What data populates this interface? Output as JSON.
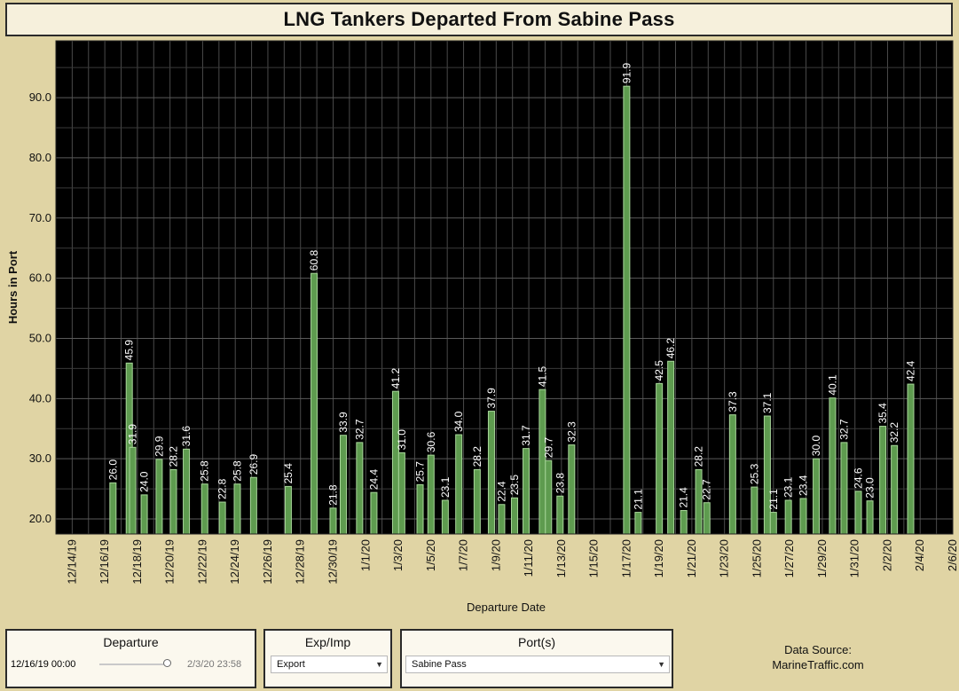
{
  "title": "LNG Tankers Departed From Sabine Pass",
  "filters": {
    "departure": {
      "title": "Departure",
      "start": "12/16/19 00:00",
      "end": "2/3/20 23:58"
    },
    "exp_imp": {
      "title": "Exp/Imp",
      "value": "Export"
    },
    "ports": {
      "title": "Port(s)",
      "value": "Sabine Pass"
    }
  },
  "source_line1": "Data Source:",
  "source_line2": "MarineTraffic.com",
  "colors": {
    "bar": "#5e9b4f",
    "bar_edge": "#a8d69a",
    "plot_bg": "#000000",
    "page_bg": "#e0d4a4"
  },
  "chart_data": {
    "type": "bar",
    "title": "LNG Tankers Departed From Sabine Pass",
    "xlabel": "Departure Date",
    "ylabel": "Hours in Port",
    "ylim": [
      17.5,
      99
    ],
    "yticks": [
      20,
      30,
      40,
      50,
      60,
      70,
      80,
      90
    ],
    "ytick_labels": [
      "20.0",
      "30.0",
      "40.0",
      "50.0",
      "60.0",
      "70.0",
      "80.0",
      "90.0"
    ],
    "xlim": [
      "12/13/19",
      "2/6/20"
    ],
    "xtick_labels": [
      "12/14/19",
      "12/16/19",
      "12/18/19",
      "12/20/19",
      "12/22/19",
      "12/24/19",
      "12/26/19",
      "12/28/19",
      "12/30/19",
      "1/1/20",
      "1/3/20",
      "1/5/20",
      "1/7/20",
      "1/9/20",
      "1/11/20",
      "1/13/20",
      "1/15/20",
      "1/17/20",
      "1/19/20",
      "1/21/20",
      "1/23/20",
      "1/25/20",
      "1/27/20",
      "1/29/20",
      "1/31/20",
      "2/2/20",
      "2/4/20",
      "2/6/20"
    ],
    "grid": true,
    "points": [
      {
        "date": "12/16/19 12:00",
        "value": 26.0,
        "label": "26.0"
      },
      {
        "date": "12/17/19 12:00",
        "value": 45.9,
        "label": "45.9"
      },
      {
        "date": "12/17/19 17:00",
        "value": 31.9,
        "label": "31.9"
      },
      {
        "date": "12/18/19 10:00",
        "value": 24.0,
        "label": "24.0"
      },
      {
        "date": "12/19/19 08:00",
        "value": 29.9,
        "label": "29.9"
      },
      {
        "date": "12/20/19 05:00",
        "value": 28.2,
        "label": "28.2"
      },
      {
        "date": "12/21/19 00:00",
        "value": 31.6,
        "label": "31.6"
      },
      {
        "date": "12/22/19 03:00",
        "value": 25.8,
        "label": "25.8"
      },
      {
        "date": "12/23/19 05:00",
        "value": 22.8,
        "label": "22.8"
      },
      {
        "date": "12/24/19 03:00",
        "value": 25.8,
        "label": "25.8"
      },
      {
        "date": "12/25/19 03:00",
        "value": 26.9,
        "label": "26.9"
      },
      {
        "date": "12/27/19 06:00",
        "value": 25.4,
        "label": "25.4"
      },
      {
        "date": "12/28/19 20:00",
        "value": 60.8,
        "label": "60.8"
      },
      {
        "date": "12/30/19 00:00",
        "value": 21.8,
        "label": "21.8"
      },
      {
        "date": "12/30/19 15:00",
        "value": 33.9,
        "label": "33.9"
      },
      {
        "date": "12/31/19 15:00",
        "value": 32.7,
        "label": "32.7"
      },
      {
        "date": "1/1/20 12:00",
        "value": 24.4,
        "label": "24.4"
      },
      {
        "date": "1/2/20 20:00",
        "value": 41.2,
        "label": "41.2"
      },
      {
        "date": "1/3/20 05:00",
        "value": 31.0,
        "label": "31.0"
      },
      {
        "date": "1/4/20 08:00",
        "value": 25.7,
        "label": "25.7"
      },
      {
        "date": "1/5/20 00:00",
        "value": 30.6,
        "label": "30.6"
      },
      {
        "date": "1/5/20 21:00",
        "value": 23.1,
        "label": "23.1"
      },
      {
        "date": "1/6/20 17:00",
        "value": 34.0,
        "label": "34.0"
      },
      {
        "date": "1/7/20 20:00",
        "value": 28.2,
        "label": "28.2"
      },
      {
        "date": "1/8/20 17:00",
        "value": 37.9,
        "label": "37.9"
      },
      {
        "date": "1/9/20 08:00",
        "value": 22.4,
        "label": "22.4"
      },
      {
        "date": "1/10/20 03:00",
        "value": 23.5,
        "label": "23.5"
      },
      {
        "date": "1/10/20 20:00",
        "value": 31.7,
        "label": "31.7"
      },
      {
        "date": "1/11/20 20:00",
        "value": 41.5,
        "label": "41.5"
      },
      {
        "date": "1/12/20 05:00",
        "value": 29.7,
        "label": "29.7"
      },
      {
        "date": "1/12/20 22:00",
        "value": 23.8,
        "label": "23.8"
      },
      {
        "date": "1/13/20 15:00",
        "value": 32.3,
        "label": "32.3"
      },
      {
        "date": "1/17/20 00:00",
        "value": 91.9,
        "label": "91.9"
      },
      {
        "date": "1/17/20 17:00",
        "value": 21.1,
        "label": "21.1"
      },
      {
        "date": "1/19/20 00:00",
        "value": 42.5,
        "label": "42.5"
      },
      {
        "date": "1/19/20 17:00",
        "value": 46.2,
        "label": "46.2"
      },
      {
        "date": "1/20/20 12:00",
        "value": 21.4,
        "label": "21.4"
      },
      {
        "date": "1/21/20 10:00",
        "value": 28.2,
        "label": "28.2"
      },
      {
        "date": "1/21/20 22:00",
        "value": 22.7,
        "label": "22.7"
      },
      {
        "date": "1/23/20 12:00",
        "value": 37.3,
        "label": "37.3"
      },
      {
        "date": "1/24/20 20:00",
        "value": 25.3,
        "label": "25.3"
      },
      {
        "date": "1/25/20 15:00",
        "value": 37.1,
        "label": "37.1"
      },
      {
        "date": "1/26/20 00:00",
        "value": 21.1,
        "label": "21.1"
      },
      {
        "date": "1/26/20 22:00",
        "value": 23.1,
        "label": "23.1"
      },
      {
        "date": "1/27/20 20:00",
        "value": 23.4,
        "label": "23.4"
      },
      {
        "date": "1/28/20 15:00",
        "value": 30.0,
        "label": "30.0"
      },
      {
        "date": "1/29/20 15:00",
        "value": 40.1,
        "label": "40.1"
      },
      {
        "date": "1/30/20 08:00",
        "value": 32.7,
        "label": "32.7"
      },
      {
        "date": "1/31/20 05:00",
        "value": 24.6,
        "label": "24.6"
      },
      {
        "date": "1/31/20 22:00",
        "value": 23.0,
        "label": "23.0"
      },
      {
        "date": "2/1/20 17:00",
        "value": 35.4,
        "label": "35.4"
      },
      {
        "date": "2/2/20 10:00",
        "value": 32.2,
        "label": "32.2"
      },
      {
        "date": "2/3/20 10:00",
        "value": 42.4,
        "label": "42.4"
      }
    ]
  }
}
